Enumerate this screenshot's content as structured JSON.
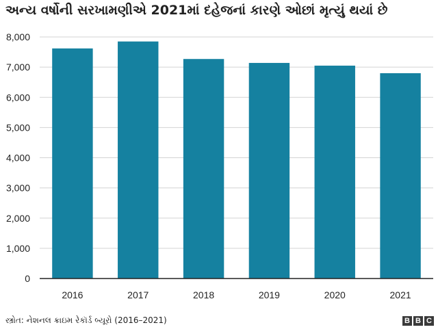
{
  "chart_data": {
    "type": "bar",
    "title": "અન્ય વર્ષોની સરખામણીએ 2021માં દહેજનાં કારણે ઓછાં મૃત્યું થયાં છે",
    "categories": [
      "2016",
      "2017",
      "2018",
      "2019",
      "2020",
      "2021"
    ],
    "values": [
      7620,
      7850,
      7270,
      7140,
      7050,
      6800
    ],
    "y_ticks": [
      "0",
      "1,000",
      "2,000",
      "3,000",
      "4,000",
      "5,000",
      "6,000",
      "7,000",
      "8,000"
    ],
    "ylim": [
      0,
      8000
    ],
    "xlabel": "",
    "ylabel": "",
    "grid": true,
    "bar_color": "#1581a0"
  },
  "source": "સ્ત્રોત: નેશનલ ક્રાઇમ રેકૉર્ડ બ્યૂરો (2016–2021)",
  "logo": [
    "B",
    "B",
    "C"
  ]
}
